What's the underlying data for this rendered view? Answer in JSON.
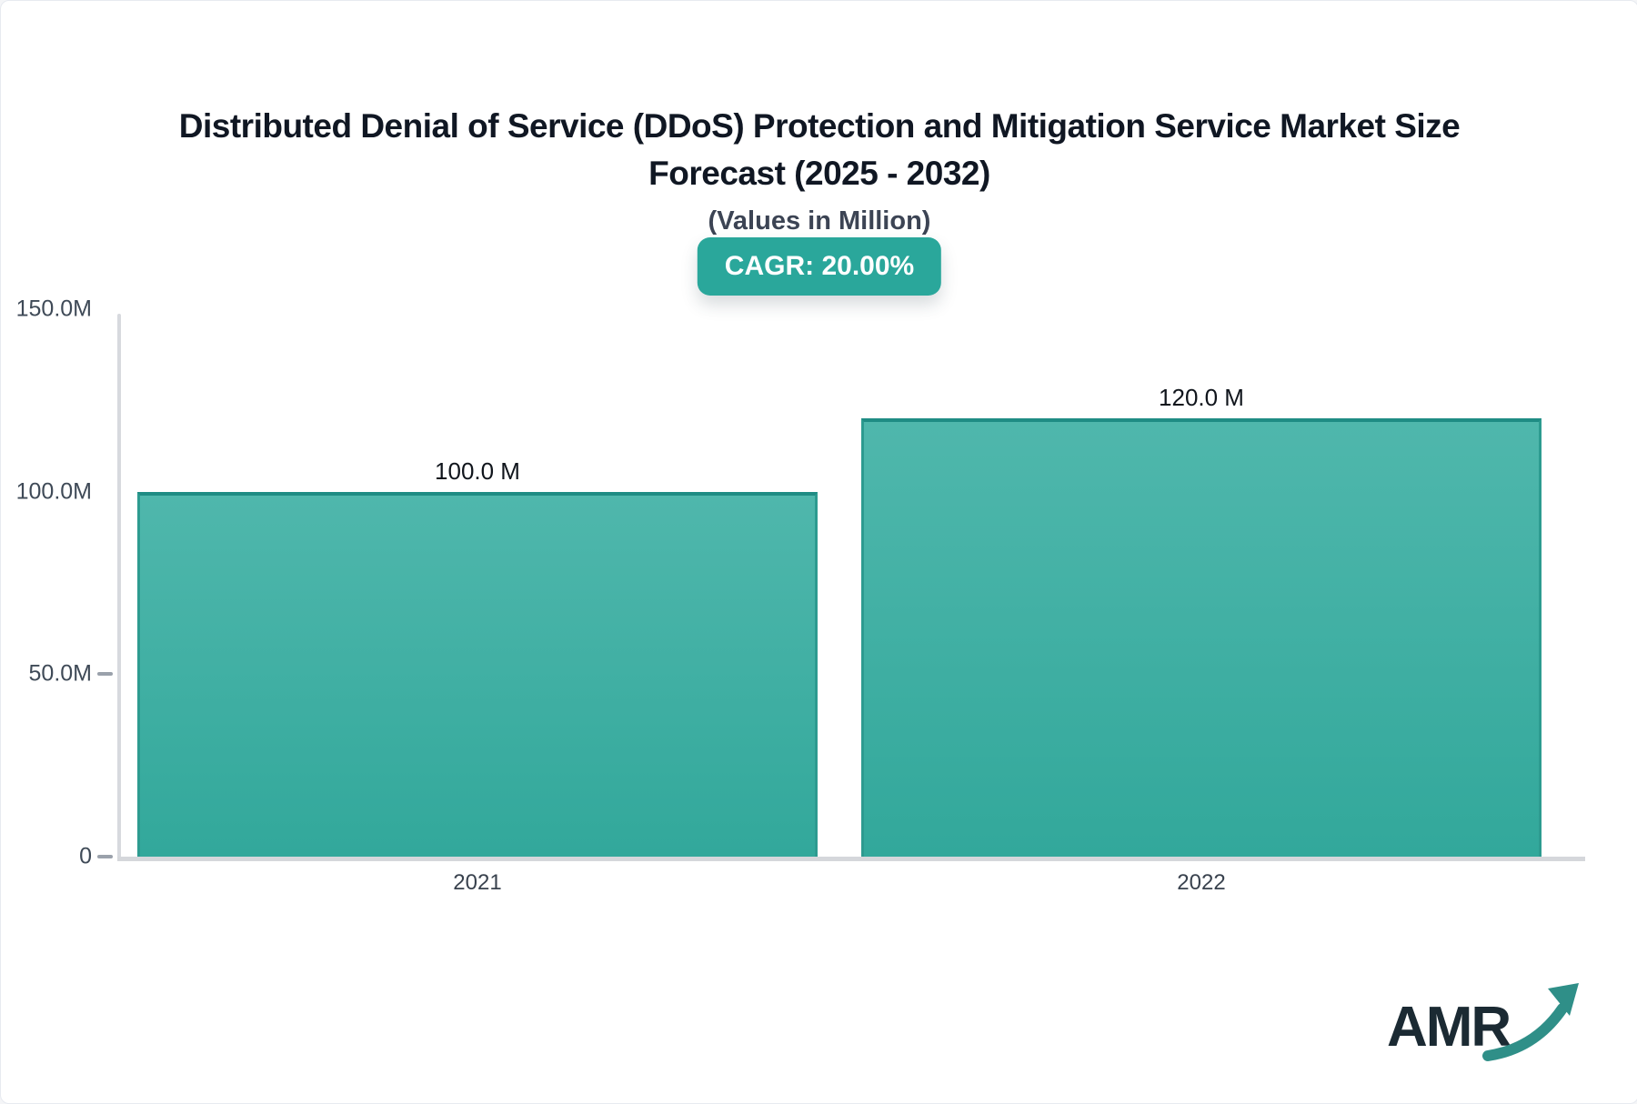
{
  "header": {
    "title_line1": "Distributed Denial of Service (DDoS) Protection and Mitigation Service Market Size",
    "title_line2": "Forecast (2025 - 2032)",
    "subtitle": "(Values in Million)",
    "cagr_badge": "CAGR: 20.00%"
  },
  "chart_data": {
    "type": "bar",
    "title": "Distributed Denial of Service (DDoS) Protection and Mitigation Service Market Size Forecast (2025 - 2032)",
    "subtitle": "(Values in Million)",
    "cagr_percent": 20.0,
    "unit": "Million",
    "categories": [
      "2021",
      "2022"
    ],
    "values": [
      100.0,
      120.0
    ],
    "value_labels": [
      "100.0 M",
      "120.0 M"
    ],
    "ylim": [
      0,
      150
    ],
    "y_ticks": [
      {
        "label": "150.0M",
        "value": 150,
        "dash": false
      },
      {
        "label": "100.0M",
        "value": 100,
        "dash": false
      },
      {
        "label": "50.0M",
        "value": 50,
        "dash": true
      },
      {
        "label": "0",
        "value": 0,
        "dash": true
      }
    ],
    "grid": false,
    "legend": false
  },
  "logo": {
    "text": "AMR"
  },
  "colors": {
    "accent_teal": "#2aa79b",
    "bar_gradient_top": "#4fb7ac",
    "bar_gradient_bottom": "#32a89b",
    "bar_border": "#1f8c84",
    "axis_line": "#d5d7db",
    "title_text": "#101723",
    "subtitle_text": "#3c4454",
    "logo_arrow": "#2f8f88"
  }
}
